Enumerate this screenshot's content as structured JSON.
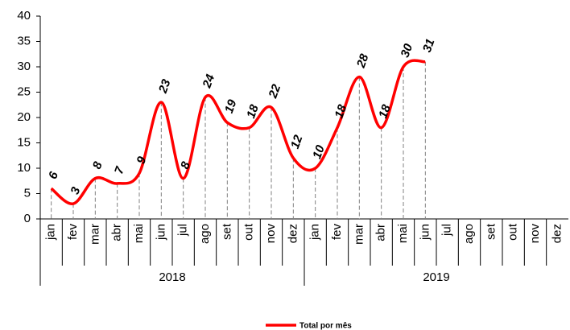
{
  "chart_data": {
    "type": "line",
    "categories": [
      "jan",
      "fev",
      "mar",
      "abr",
      "mai",
      "jun",
      "jul",
      "ago",
      "set",
      "out",
      "nov",
      "dez",
      "jan",
      "fev",
      "mar",
      "abr",
      "mai",
      "jun",
      "jul",
      "ago",
      "set",
      "out",
      "nov",
      "dez"
    ],
    "category_groups": [
      "2018",
      "2019"
    ],
    "series": [
      {
        "name": "Total por mês",
        "color": "#ff0000",
        "values": [
          6,
          3,
          8,
          7,
          9,
          23,
          8,
          24,
          19,
          18,
          22,
          12,
          10,
          18,
          28,
          18,
          30,
          31,
          null,
          null,
          null,
          null,
          null,
          null
        ]
      }
    ],
    "ylim": [
      0,
      40
    ],
    "yticks": [
      0,
      5,
      10,
      15,
      20,
      25,
      30,
      35,
      40
    ],
    "data_labels": true,
    "drop_lines": true,
    "smooth": true,
    "legend": "bottom"
  }
}
